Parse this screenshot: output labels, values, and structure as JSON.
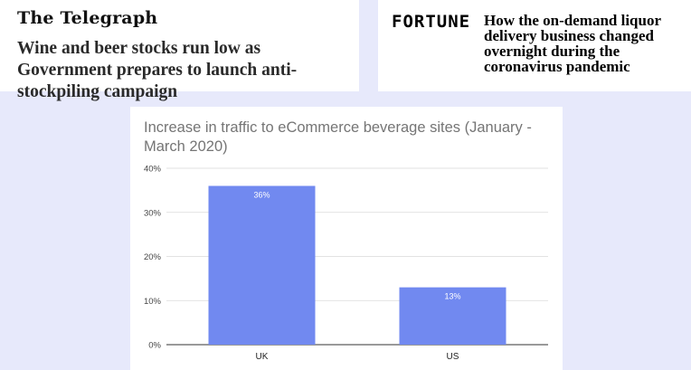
{
  "telegraph": {
    "logo": "The Telegraph",
    "headline": "Wine and beer stocks run low as Government prepares to launch anti-stockpiling campaign"
  },
  "fortune": {
    "logo": "FORTUNE",
    "headline": "How the on-demand liquor delivery business changed overnight during the coronavirus pandemic"
  },
  "chart_data": {
    "type": "bar",
    "title": "Increase in traffic to eCommerce beverage sites (January - March 2020)",
    "categories": [
      "UK",
      "US"
    ],
    "values": [
      36,
      13
    ],
    "value_labels": [
      "36%",
      "13%"
    ],
    "yticks": [
      0,
      10,
      20,
      30,
      40
    ],
    "ytick_labels": [
      "0%",
      "10%",
      "20%",
      "30%",
      "40%"
    ],
    "ylim": [
      0,
      40
    ],
    "xlabel": "",
    "ylabel": "",
    "grid": true,
    "bar_color": "#7189f0"
  }
}
